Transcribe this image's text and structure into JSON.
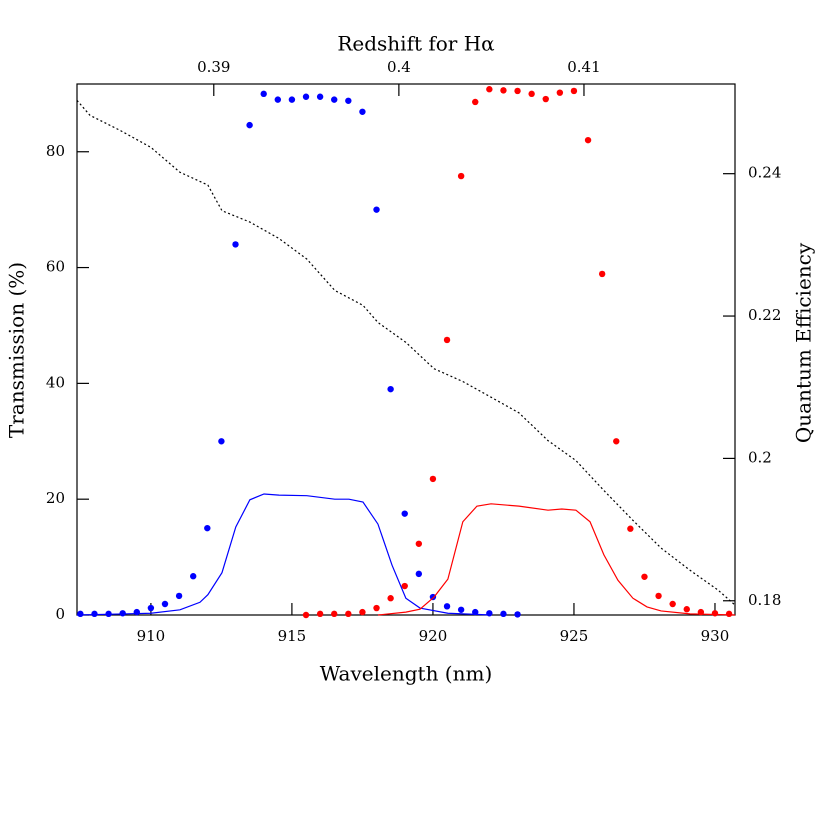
{
  "chart_data": {
    "type": "scatter",
    "xlabel": "Wavelength (nm)",
    "ylabel": "Transmission (%)",
    "y2label": "Quantum Efficiency",
    "x2label": "Redshift for Hα",
    "xlim": [
      907.38,
      930.71
    ],
    "xticks": [
      910,
      915,
      920,
      925,
      930
    ],
    "ylim": [
      0,
      91.7
    ],
    "yticks": [
      0,
      20,
      40,
      60,
      80
    ],
    "y2lim": [
      0.178,
      0.2526
    ],
    "y2ticks": [
      0.18,
      0.2,
      0.22,
      0.24
    ],
    "x2lim": [
      0.38261,
      0.41816
    ],
    "x2ticks": [
      0.39,
      0.4,
      0.41
    ],
    "series": [
      {
        "type": "scatter",
        "color": "#0000ff",
        "x": [
          907.5,
          908,
          908.5,
          909,
          909.5,
          910,
          910.5,
          911,
          911.5,
          912,
          912.5,
          913,
          913.5,
          914,
          914.5,
          915,
          915.5,
          916,
          916.5,
          917,
          917.5,
          918,
          918.5,
          919,
          919.5,
          920,
          920.5,
          921,
          921.5,
          922,
          922.5,
          923
        ],
        "values": [
          0.2,
          0.2,
          0.2,
          0.3,
          0.5,
          1.2,
          1.9,
          3.3,
          6.7,
          15.0,
          30.0,
          64.0,
          84.6,
          90.0,
          89.0,
          89.0,
          89.5,
          89.5,
          89.0,
          88.8,
          86.9,
          70.0,
          39.0,
          17.5,
          7.1,
          3.1,
          1.5,
          0.9,
          0.5,
          0.3,
          0.2,
          0.1
        ]
      },
      {
        "type": "scatter",
        "color": "#ff0000",
        "x": [
          915.5,
          916,
          916.5,
          917,
          917.5,
          918,
          918.5,
          919,
          919.5,
          920,
          920.5,
          921,
          921.5,
          922,
          922.5,
          923,
          923.5,
          924,
          924.5,
          925,
          925.5,
          926,
          926.5,
          927,
          927.5,
          928,
          928.5,
          929,
          929.5,
          930,
          930.5
        ],
        "values": [
          0,
          0.2,
          0.2,
          0.2,
          0.5,
          1.2,
          2.9,
          5.0,
          12.3,
          23.5,
          47.5,
          75.8,
          88.6,
          90.8,
          90.6,
          90.5,
          90.0,
          89.1,
          90.2,
          90.5,
          82.0,
          58.9,
          30.0,
          14.9,
          6.6,
          3.3,
          1.9,
          1.0,
          0.5,
          0.3,
          0.2
        ]
      },
      {
        "type": "line",
        "color": "#0000ff",
        "x": [
          907.38,
          910,
          911.03,
          911.74,
          912.02,
          912.52,
          913.01,
          913.51,
          914.01,
          914.54,
          915.53,
          916.52,
          917.02,
          917.52,
          918.05,
          918.55,
          919.04,
          919.54,
          920.53,
          922.06
        ],
        "values": [
          0,
          0.3,
          0.9,
          2.2,
          3.5,
          7.3,
          15.2,
          19.9,
          20.9,
          20.7,
          20.6,
          20.0,
          20.0,
          19.5,
          15.7,
          8.6,
          2.9,
          1.2,
          0.3,
          0
        ]
      },
      {
        "type": "line",
        "color": "#ff0000",
        "x": [
          918.05,
          919.04,
          919.54,
          920.04,
          920.53,
          921.06,
          921.56,
          922.06,
          923.05,
          924.08,
          924.57,
          925.07,
          925.57,
          926.06,
          926.56,
          927.09,
          927.59,
          928.09,
          929.11,
          930.71
        ],
        "values": [
          0,
          0.5,
          1.0,
          3.1,
          6.2,
          16.1,
          18.8,
          19.2,
          18.8,
          18.1,
          18.3,
          18.1,
          16.1,
          10.4,
          6.0,
          2.9,
          1.4,
          0.7,
          0.2,
          0
        ]
      },
      {
        "type": "line",
        "color": "#000000",
        "axis": "y2",
        "dashed": true,
        "x": [
          907.38,
          907.84,
          908.9,
          910,
          911.03,
          912.02,
          912.52,
          913.51,
          914.54,
          915.53,
          916.52,
          917.52,
          918.05,
          919.04,
          920.04,
          921.06,
          922.06,
          923.05,
          924.08,
          925.07,
          926.06,
          927.09,
          928.09,
          929.11,
          930.11,
          930.71
        ],
        "values": [
          0.2503,
          0.2482,
          0.2461,
          0.2437,
          0.2402,
          0.2384,
          0.2348,
          0.2332,
          0.2309,
          0.228,
          0.2236,
          0.2215,
          0.2191,
          0.2163,
          0.2126,
          0.2108,
          0.2086,
          0.2064,
          0.2025,
          0.1997,
          0.1955,
          0.1913,
          0.1874,
          0.1843,
          0.1815,
          0.1794
        ]
      }
    ]
  }
}
